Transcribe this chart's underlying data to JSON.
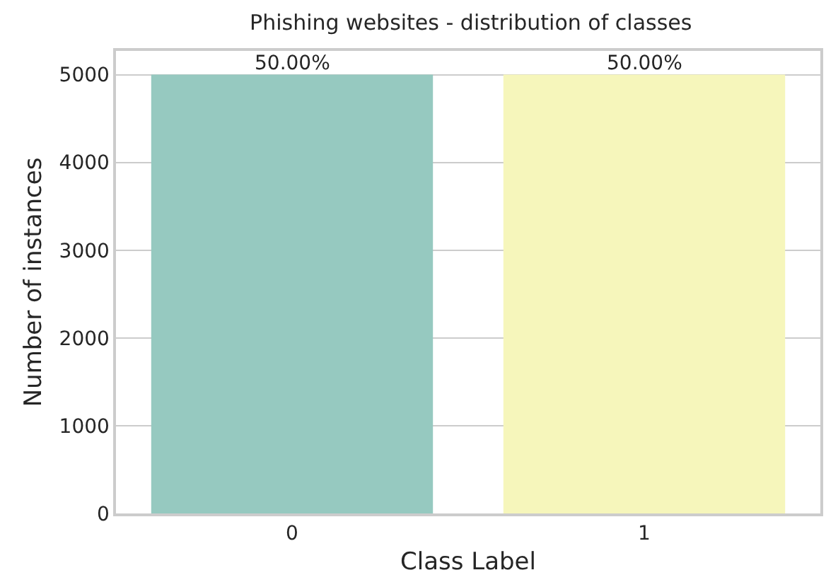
{
  "chart_data": {
    "type": "bar",
    "title": "Phishing websites - distribution of classes",
    "xlabel": "Class Label",
    "ylabel": "Number of instances",
    "categories": [
      "0",
      "1"
    ],
    "values": [
      5000,
      5000
    ],
    "colors": [
      "#96c9c0",
      "#f6f6bb"
    ],
    "annotations": [
      {
        "text": "50.00%",
        "x": "0",
        "y": 5000
      },
      {
        "text": "50.00%",
        "x": "1",
        "y": 5000
      }
    ],
    "ylim": [
      0,
      5270
    ],
    "yticks": [
      0,
      1000,
      2000,
      3000,
      4000,
      5000
    ],
    "grid": "y",
    "legend": false
  }
}
